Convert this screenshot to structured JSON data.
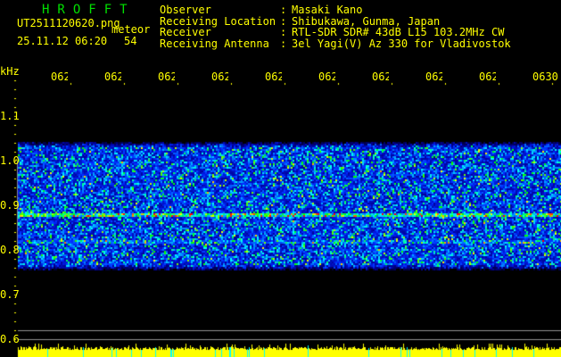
{
  "header": {
    "app_title": "HROFFT",
    "filename": "UT2511120620.png",
    "mode": "meteor",
    "datetime": "25.11.12 06:20",
    "count": "54",
    "info": [
      {
        "label": "Observer",
        "value": "Masaki Kano"
      },
      {
        "label": "Receiving Location",
        "value": "Shibukawa, Gunma, Japan"
      },
      {
        "label": "Receiver",
        "value": "RTL-SDR SDR# 43dB L15 103.2MHz CW"
      },
      {
        "label": "Receiving Antenna",
        "value": "3el Yagi(V) Az 330 for Vladivostok"
      }
    ]
  },
  "chart_data": {
    "type": "heatmap",
    "ylabel": "kHz",
    "ylim": [
      0.58,
      1.2
    ],
    "yticks": [
      "1.1",
      "1.0",
      "0.9",
      "0.8",
      "0.7",
      "0.6"
    ],
    "xticks": [
      "0621",
      "0622",
      "0623",
      "0624",
      "0625",
      "0626",
      "0627",
      "0628",
      "0629",
      "0630"
    ],
    "signal_band_khz": [
      0.77,
      1.03
    ],
    "carrier_khz": 0.88,
    "colormap": [
      "#000000",
      "#0000c0",
      "#0040ff",
      "#00ffff",
      "#00ff00",
      "#ffff00",
      "#ff0000"
    ],
    "reference_lines_khz": [
      0.6,
      0.62
    ],
    "bottom_bar_colors": [
      "#ffff00",
      "#00ffff"
    ]
  }
}
